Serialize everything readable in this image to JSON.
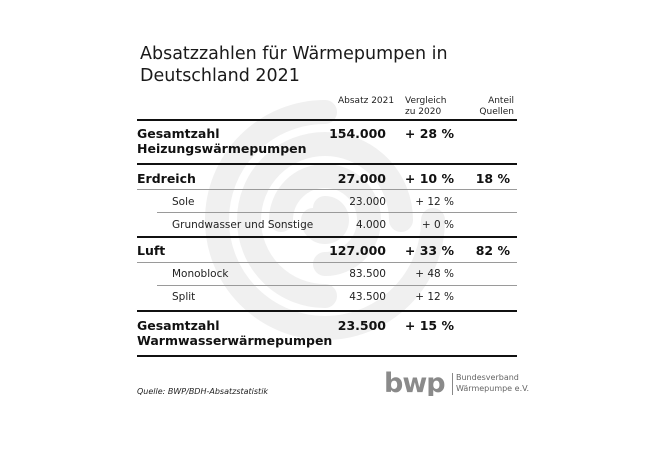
{
  "title": {
    "line1": "Absatzzahlen für Wärmepumpen in",
    "line2": "Deutschland 2021"
  },
  "columns": {
    "absatz": "Absatz 2021",
    "vergleich_l1": "Vergleich",
    "vergleich_l2": "zu 2020",
    "anteil_l1": "Anteil",
    "anteil_l2": "Quellen"
  },
  "rows": {
    "gesamt_heizung": {
      "label_l1": "Gesamtzahl",
      "label_l2": "Heizungswärmepumpen",
      "absatz": "154.000",
      "vergleich": "+ 28 %"
    },
    "erdreich": {
      "label": "Erdreich",
      "absatz": "27.000",
      "vergleich": "+ 10 %",
      "anteil": "18 %"
    },
    "sole": {
      "label": "Sole",
      "absatz": "23.000",
      "vergleich": "+ 12 %"
    },
    "grundwasser": {
      "label": "Grundwasser und Sonstige",
      "absatz": "4.000",
      "vergleich": "+ 0 %"
    },
    "luft": {
      "label": "Luft",
      "absatz": "127.000",
      "vergleich": "+ 33 %",
      "anteil": "82 %"
    },
    "monoblock": {
      "label": "Monoblock",
      "absatz": "83.500",
      "vergleich": "+ 48 %"
    },
    "split": {
      "label": "Split",
      "absatz": "43.500",
      "vergleich": "+ 12 %"
    },
    "gesamt_warmwasser": {
      "label_l1": "Gesamtzahl",
      "label_l2": "Warmwasserwärmepumpen",
      "absatz": "23.500",
      "vergleich": "+ 15 %"
    }
  },
  "source": "Quelle: BWP/BDH-Absatzstatistik",
  "logo": {
    "wordmark": "bwp",
    "line1": "Bundesverband",
    "line2": "Wärmepumpe e.V."
  },
  "colors": {
    "swirl": "#f0f0f0",
    "rule": "#111111",
    "logo_grey": "#8a8a8a"
  }
}
